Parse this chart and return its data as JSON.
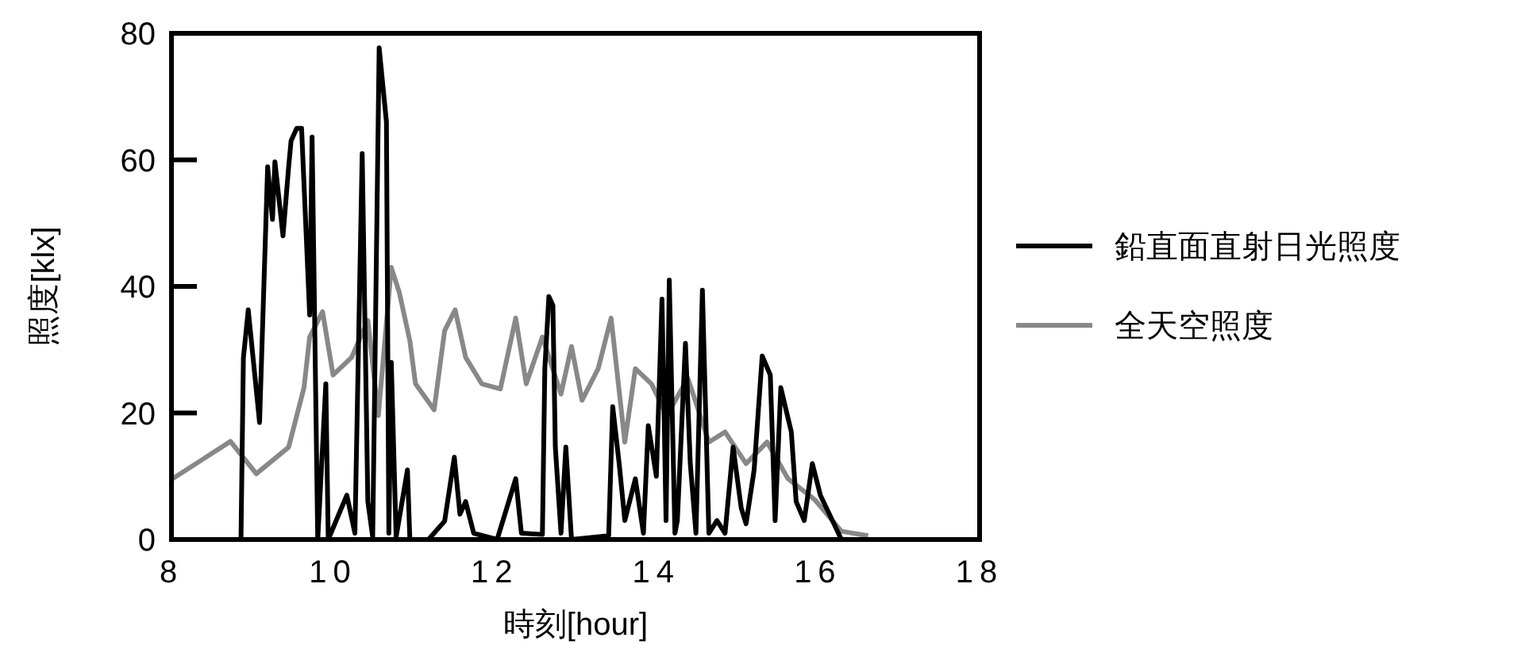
{
  "chart_data": {
    "type": "line",
    "xlabel": "時刻[hour]",
    "ylabel": "照度[klx]",
    "xlim": [
      8,
      18
    ],
    "xticks": [
      8,
      10,
      12,
      14,
      16,
      18
    ],
    "ylim": [
      0,
      80
    ],
    "yticks": [
      0,
      20,
      40,
      60,
      80
    ],
    "legend": "right",
    "grid": false,
    "series": [
      {
        "name": "鉛直面直射日光照度",
        "color": "#000000",
        "x": [
          8.86,
          8.89,
          8.95,
          9.09,
          9.19,
          9.25,
          9.28,
          9.38,
          9.45,
          9.48,
          9.55,
          9.61,
          9.71,
          9.74,
          9.81,
          9.91,
          9.94,
          10.17,
          10.27,
          10.36,
          10.43,
          10.49,
          10.57,
          10.66,
          10.69,
          10.72,
          10.78,
          10.92,
          10.95,
          11.18,
          11.38,
          11.5,
          11.57,
          11.64,
          11.74,
          12.03,
          12.26,
          12.33,
          12.59,
          12.62,
          12.67,
          12.72,
          12.75,
          12.82,
          12.88,
          12.95,
          13.41,
          13.46,
          13.54,
          13.61,
          13.74,
          13.84,
          13.9,
          14.0,
          14.07,
          14.12,
          14.16,
          14.23,
          14.26,
          14.36,
          14.42,
          14.49,
          14.57,
          14.65,
          14.75,
          14.85,
          14.95,
          15.05,
          15.11,
          15.21,
          15.31,
          15.41,
          15.47,
          15.54,
          15.67,
          15.73,
          15.83,
          15.93,
          16.03,
          16.29
        ],
        "values": [
          0,
          28.7,
          36.3,
          18.5,
          58.9,
          50.6,
          59.7,
          48,
          58.9,
          63,
          65,
          65,
          35.5,
          63.6,
          0,
          24.6,
          0,
          7,
          1,
          61,
          6,
          0.4,
          77.7,
          66,
          1,
          28,
          0.4,
          11,
          0,
          0,
          2.9,
          13,
          4,
          6,
          1,
          0,
          9.6,
          1,
          0.8,
          27,
          38.4,
          37,
          14.6,
          1,
          14.6,
          0,
          0.6,
          21,
          12,
          3,
          9.6,
          1,
          18,
          10,
          38,
          3,
          41,
          1,
          3,
          31,
          12,
          1,
          39.4,
          1,
          3,
          1,
          14.6,
          5,
          2.5,
          11,
          29,
          26,
          3,
          24,
          17,
          6,
          3,
          12,
          7,
          0
        ]
      },
      {
        "name": "全天空照度",
        "color": "#888888",
        "x": [
          8.0,
          8.73,
          9.05,
          9.45,
          9.64,
          9.71,
          9.87,
          10.0,
          10.23,
          10.43,
          10.56,
          10.72,
          10.82,
          10.95,
          11.02,
          11.25,
          11.38,
          11.51,
          11.64,
          11.84,
          12.07,
          12.26,
          12.39,
          12.59,
          12.82,
          12.95,
          13.08,
          13.28,
          13.44,
          13.61,
          13.74,
          13.94,
          14.13,
          14.39,
          14.65,
          14.85,
          15.11,
          15.37,
          15.63,
          15.96,
          16.29,
          16.62
        ],
        "values": [
          9.5,
          15.5,
          10.4,
          14.6,
          24,
          32,
          36,
          26,
          28.8,
          34.6,
          19.6,
          43,
          39,
          31.4,
          24.6,
          20.5,
          33,
          36.3,
          28.8,
          24.6,
          23.8,
          35,
          24.6,
          32,
          23,
          30.5,
          22,
          27,
          35,
          15.4,
          27,
          24.6,
          19.6,
          25.5,
          15.4,
          17,
          12,
          15.4,
          9.6,
          6.3,
          1.3,
          0.6
        ]
      }
    ]
  }
}
